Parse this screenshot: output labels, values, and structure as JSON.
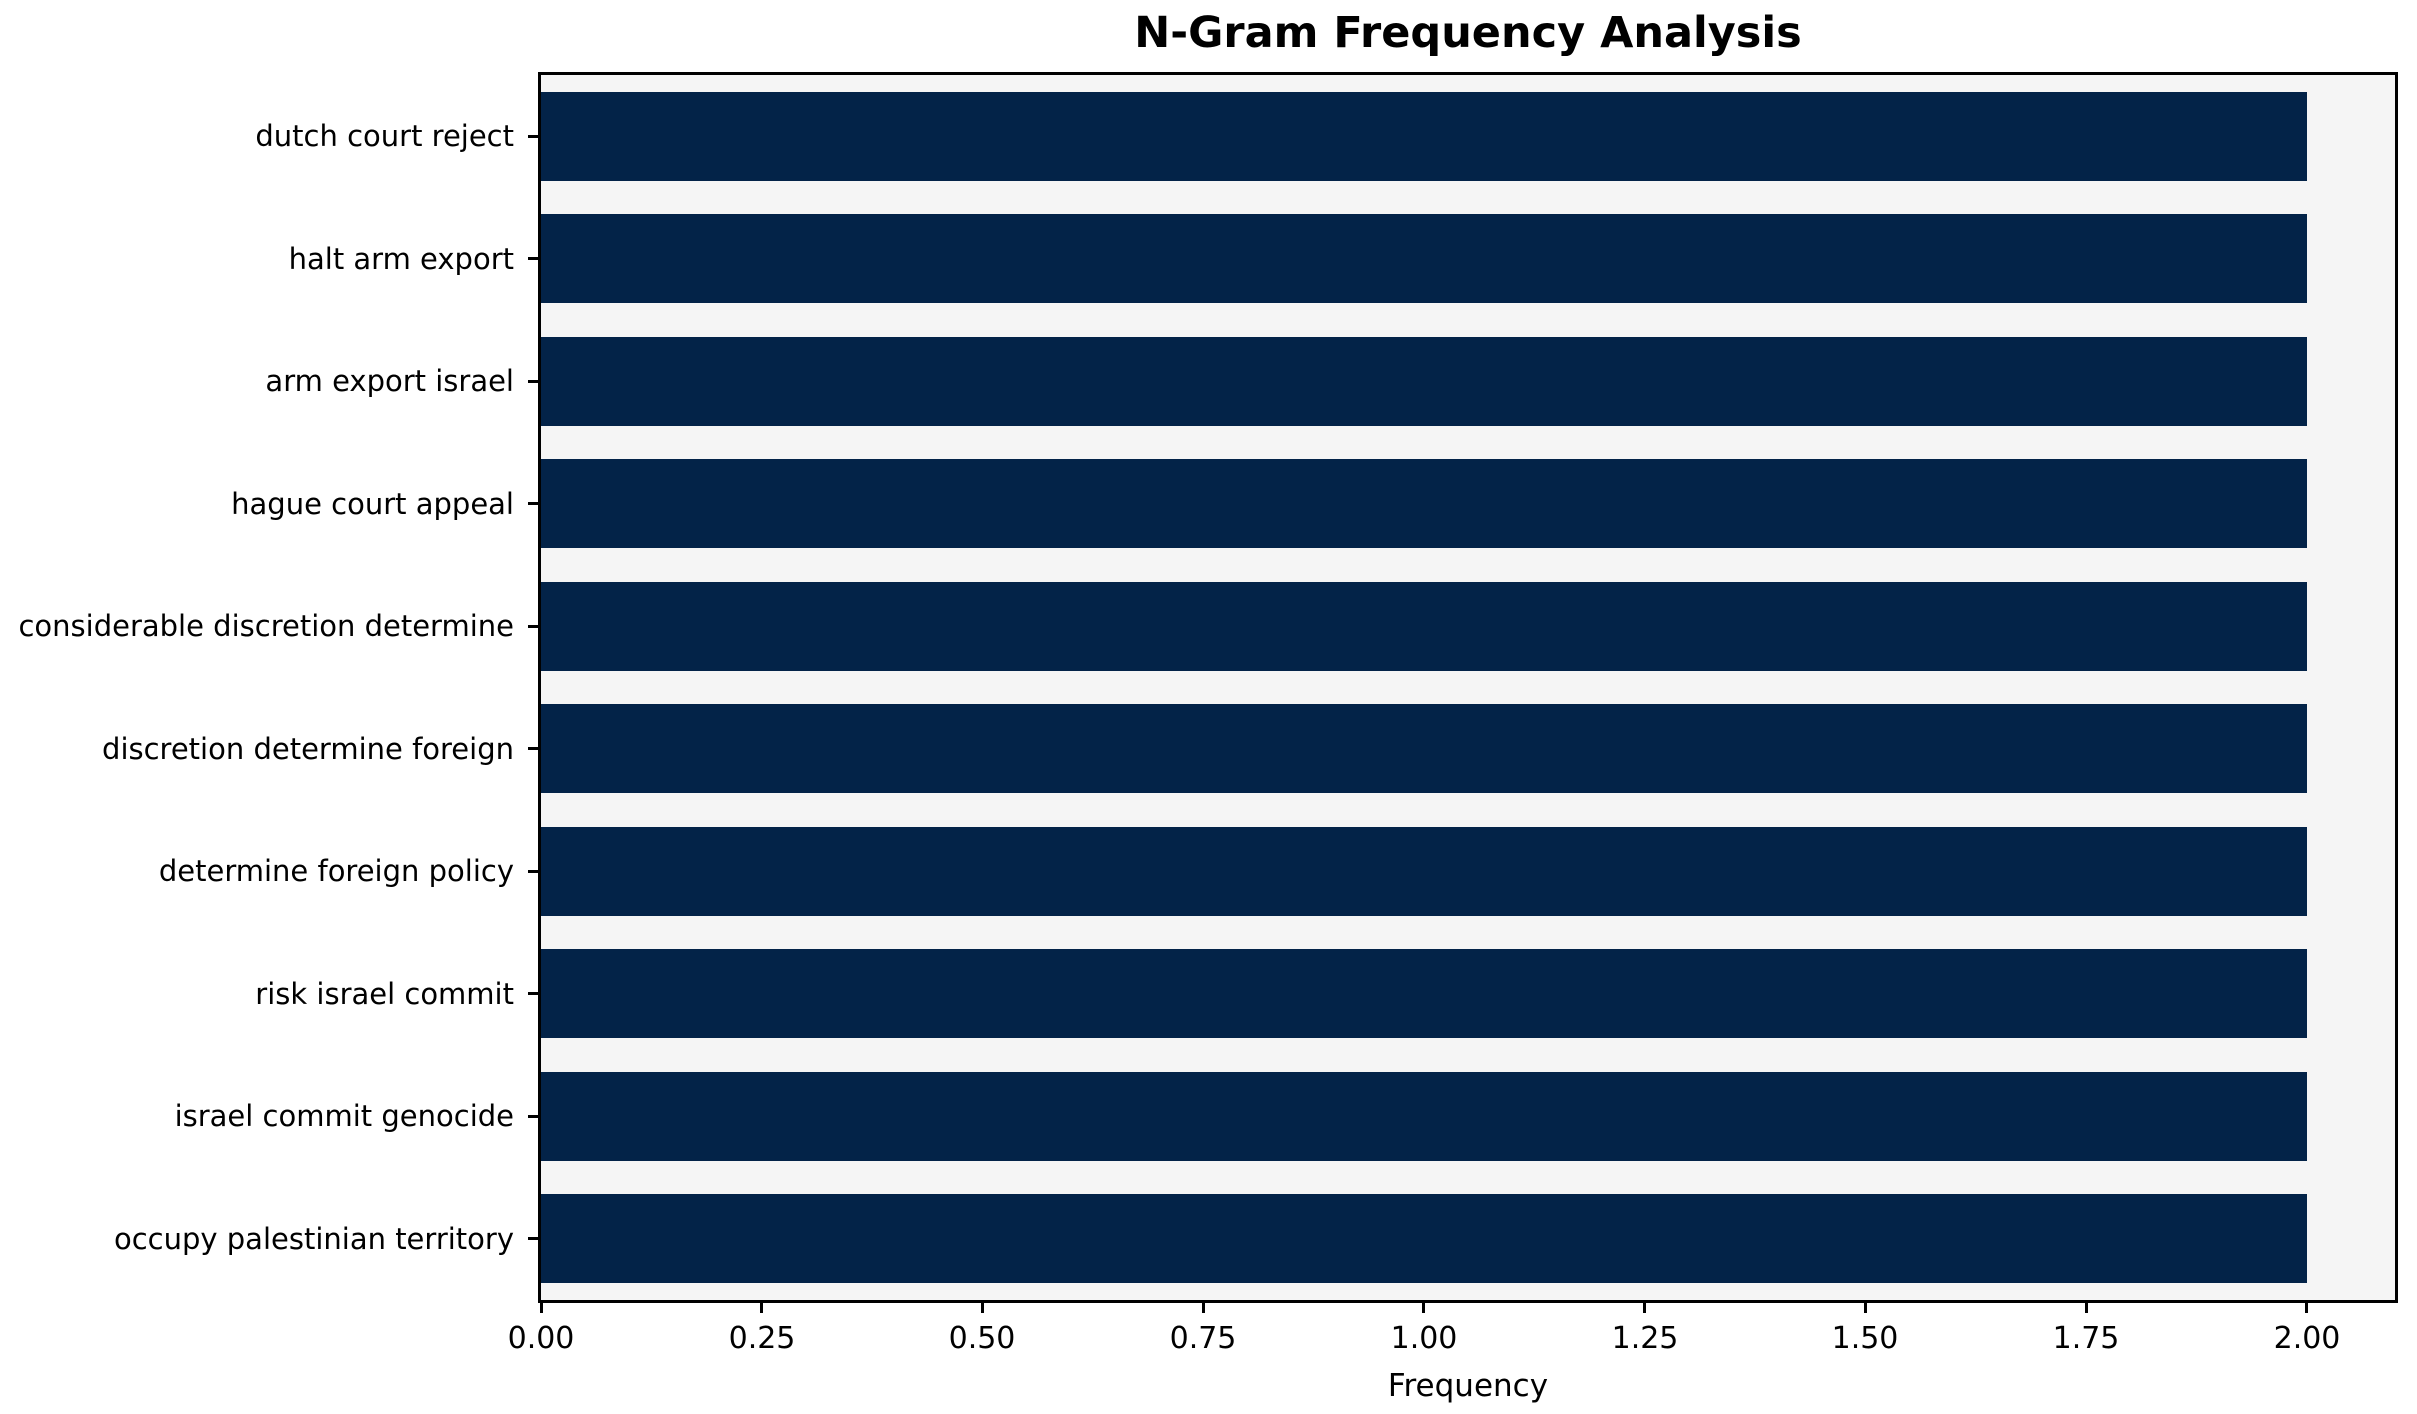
{
  "page": {
    "background_color": "#ffffff"
  },
  "chart_data": {
    "type": "bar",
    "orientation": "horizontal",
    "title": "N-Gram Frequency Analysis",
    "xlabel": "Frequency",
    "ylabel": "",
    "categories": [
      "dutch court reject",
      "halt arm export",
      "arm export israel",
      "hague court appeal",
      "considerable discretion determine",
      "discretion determine foreign",
      "determine foreign policy",
      "risk israel commit",
      "israel commit genocide",
      "occupy palestinian territory"
    ],
    "values": [
      2,
      2,
      2,
      2,
      2,
      2,
      2,
      2,
      2,
      2
    ],
    "xlim": [
      0,
      2.1
    ],
    "xtick_labels": [
      "0.00",
      "0.25",
      "0.50",
      "0.75",
      "1.00",
      "1.25",
      "1.50",
      "1.75",
      "2.00"
    ],
    "xtick_values": [
      0,
      0.25,
      0.5,
      0.75,
      1,
      1.25,
      1.5,
      1.75,
      2
    ],
    "grid": false,
    "legend": null,
    "bar_color": "#032348",
    "plot_background": "#f5f5f5",
    "spine_color": "#000000",
    "text_color": "#000000"
  }
}
